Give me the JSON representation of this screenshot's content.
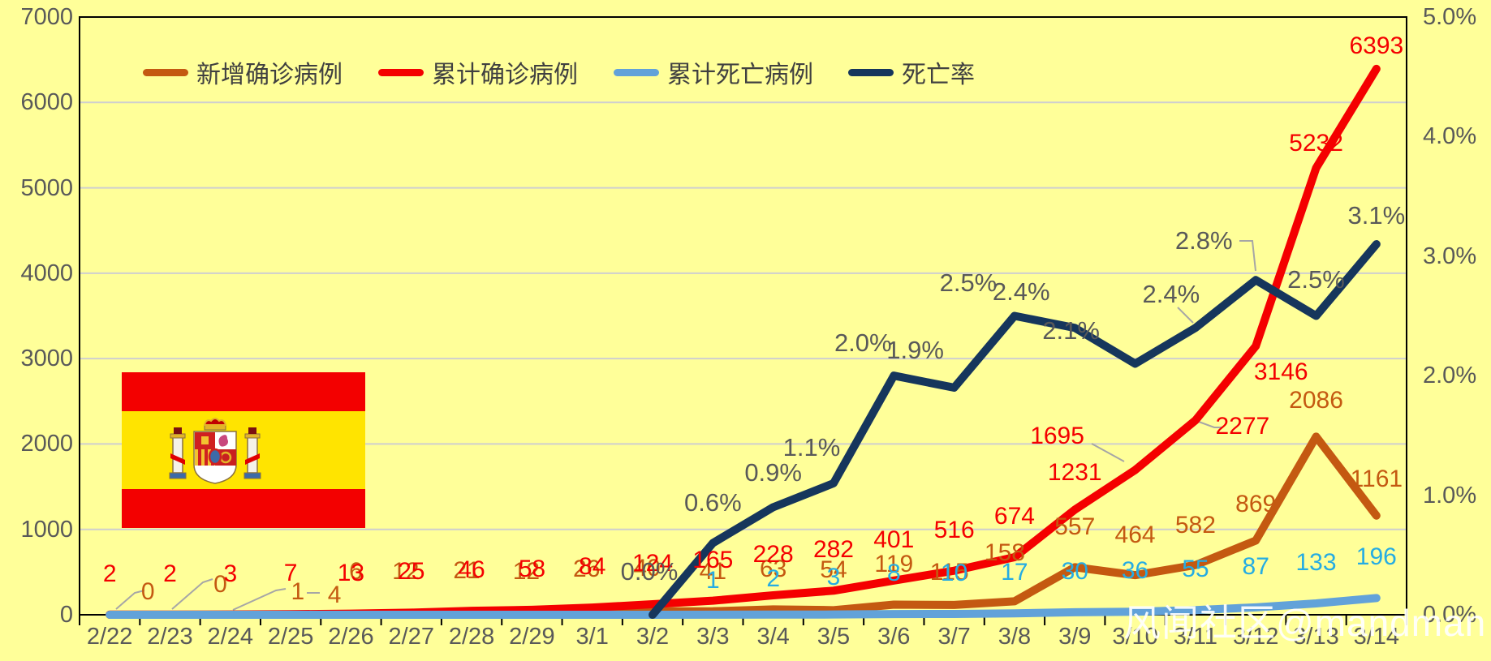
{
  "watermark": "风闻社区@mandman",
  "flag": {
    "country": "Spain"
  },
  "chart_data": {
    "type": "line",
    "title": "",
    "grid": true,
    "legend_position": "top",
    "categories": [
      "2/22",
      "2/23",
      "2/24",
      "2/25",
      "2/26",
      "2/27",
      "2/28",
      "2/29",
      "3/1",
      "3/2",
      "3/3",
      "3/4",
      "3/5",
      "3/6",
      "3/7",
      "3/8",
      "3/9",
      "3/10",
      "3/11",
      "3/12",
      "3/13",
      "3/14"
    ],
    "left_axis": {
      "min": 0,
      "max": 7000,
      "step": 1000,
      "tick_labels": [
        "0",
        "1000",
        "2000",
        "3000",
        "4000",
        "5000",
        "6000",
        "7000"
      ]
    },
    "right_axis": {
      "min": 0,
      "max": 5,
      "step": 1,
      "tick_labels": [
        "0.0%",
        "1.0%",
        "2.0%",
        "3.0%",
        "4.0%",
        "5.0%"
      ]
    },
    "series": [
      {
        "key": "newcases",
        "name": "新增确诊病例",
        "axis": "left",
        "color": "#C45911",
        "label_color": "#C45911",
        "values": [
          0,
          0,
          1,
          4,
          6,
          12,
          21,
          12,
          26,
          40,
          41,
          63,
          54,
          119,
          115,
          158,
          557,
          464,
          582,
          869,
          2086,
          1161
        ]
      },
      {
        "key": "cumcases",
        "name": "累计确诊病例",
        "axis": "left",
        "color": "#F40000",
        "label_color": "#F40000",
        "values": [
          2,
          2,
          3,
          7,
          13,
          25,
          46,
          58,
          84,
          124,
          165,
          228,
          282,
          401,
          516,
          674,
          1231,
          1695,
          2277,
          3146,
          5232,
          6393
        ]
      },
      {
        "key": "cumdeaths",
        "name": "累计死亡病例",
        "axis": "left",
        "color": "#62A2D9",
        "label_color": "#25ACE3",
        "labels_from_index": 10,
        "values": [
          0,
          0,
          0,
          0,
          0,
          0,
          0,
          0,
          0,
          0,
          1,
          2,
          3,
          8,
          10,
          17,
          30,
          36,
          55,
          87,
          133,
          196
        ]
      },
      {
        "key": "deathrate",
        "name": "死亡率",
        "axis": "right",
        "color": "#16365C",
        "label_color": "#595959",
        "labels_from_index": 9,
        "values": [
          null,
          null,
          null,
          null,
          null,
          null,
          null,
          null,
          null,
          0,
          0.6,
          0.9,
          1.1,
          2.0,
          1.9,
          2.5,
          2.4,
          2.1,
          2.4,
          2.8,
          2.5,
          3.1
        ],
        "display_labels": [
          null,
          null,
          null,
          null,
          null,
          null,
          null,
          null,
          null,
          "0.0%",
          "0.6%",
          "0.9%",
          "1.1%",
          "2.0%",
          "1.9%",
          "2.5%",
          "2.4%",
          "2.1%",
          "2.4%",
          "2.8%",
          "2.5%",
          "3.1%"
        ]
      }
    ]
  }
}
